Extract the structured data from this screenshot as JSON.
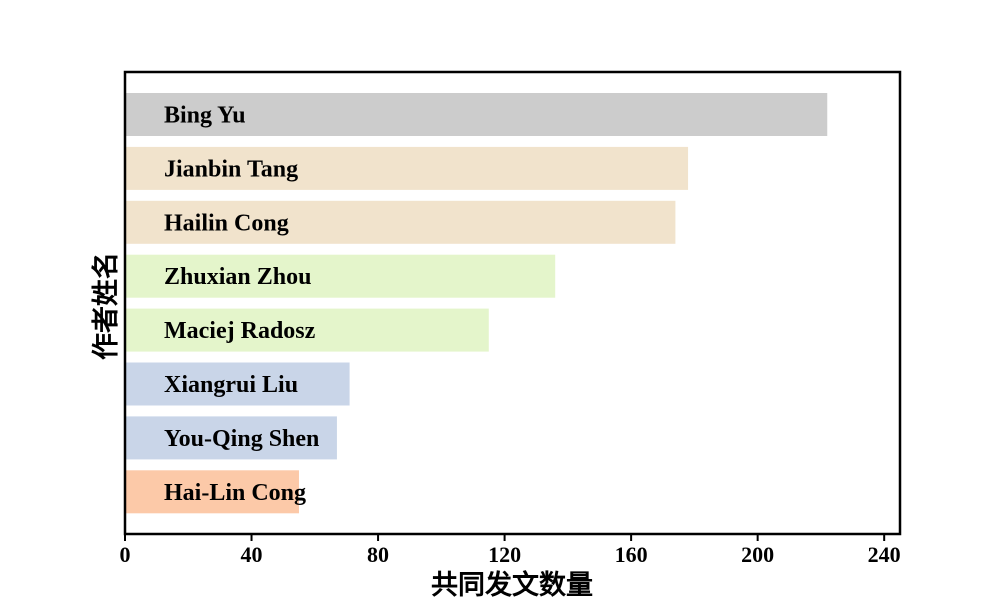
{
  "chart_data": {
    "type": "bar",
    "orientation": "horizontal",
    "title": "",
    "xlabel": "共同发文数量",
    "ylabel": "作者姓名",
    "xlim": [
      0,
      245
    ],
    "xticks": [
      0,
      40,
      80,
      120,
      160,
      200,
      240
    ],
    "grid": false,
    "categories": [
      "Bing Yu",
      "Jianbin Tang",
      "Hailin Cong",
      "Zhuxian Zhou",
      "Maciej Radosz",
      "Xiangrui Liu",
      "You-Qing Shen",
      "Hai-Lin Cong"
    ],
    "values": [
      222,
      178,
      174,
      136,
      115,
      71,
      67,
      55
    ],
    "colors": [
      "#cccccc",
      "#f1e3cc",
      "#f1e3cc",
      "#e4f5cb",
      "#e4f5cb",
      "#c9d5e8",
      "#c9d5e8",
      "#fcc9a8"
    ]
  }
}
